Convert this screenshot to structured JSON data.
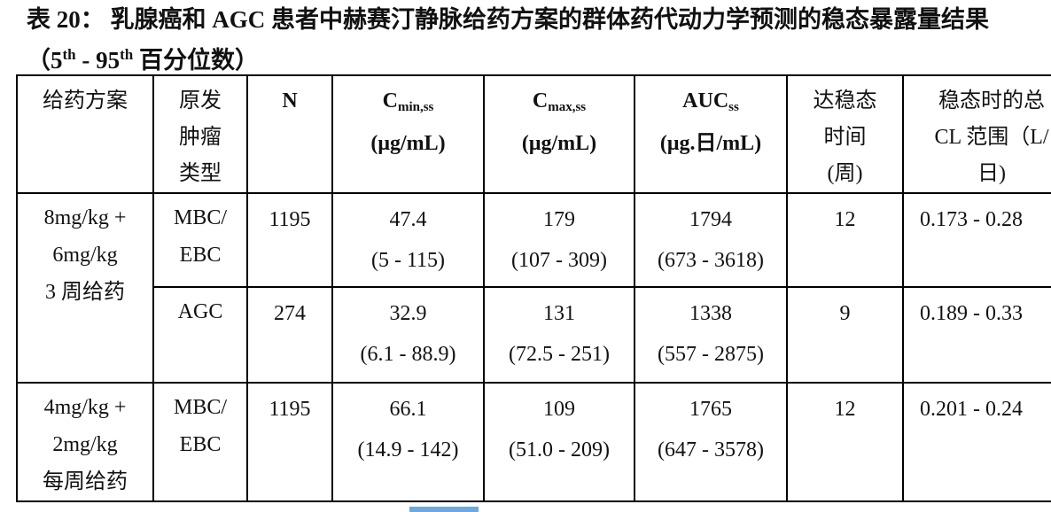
{
  "title": {
    "text": "表 20：  乳腺癌和 AGC 患者中赫赛汀静脉给药方案的群体药代动力学预测的稳态暴露量结果（5",
    "sup1": "th",
    "mid": " - 95",
    "sup2": "th",
    "suffix": " 百分位数）"
  },
  "table": {
    "headers": [
      {
        "lines": [
          "给药方案"
        ]
      },
      {
        "lines": [
          "原发",
          "肿瘤",
          "类型"
        ]
      },
      {
        "lines": [
          "N"
        ]
      },
      {
        "main": "C",
        "sub": "min,ss",
        "unit": "(μg/mL)"
      },
      {
        "main": "C",
        "sub": "max,ss",
        "unit": "(μg/mL)"
      },
      {
        "main": "AUC",
        "sub": "ss",
        "unit": "(μg.日/mL)"
      },
      {
        "lines": [
          "达稳态",
          "时间",
          "(周)"
        ]
      },
      {
        "lines": [
          "稳态时的总",
          "CL 范围（L/",
          "日)"
        ]
      }
    ],
    "groups": [
      {
        "regimen": [
          "8mg/kg +",
          "6mg/kg",
          "3 周给药"
        ],
        "rows": [
          {
            "tumor": [
              "MBC/",
              "EBC"
            ],
            "n": "1195",
            "cmin": [
              "47.4",
              "(5 - 115)"
            ],
            "cmax": [
              "179",
              "(107 - 309)"
            ],
            "auc": [
              "1794",
              "(673 - 3618)"
            ],
            "weeks": "12",
            "cl": "0.173 - 0.28"
          },
          {
            "tumor": [
              "AGC"
            ],
            "n": "274",
            "cmin": [
              "32.9",
              "(6.1 - 88.9)"
            ],
            "cmax": [
              "131",
              "(72.5 - 251)"
            ],
            "auc": [
              "1338",
              "(557 - 2875)"
            ],
            "weeks": "9",
            "cl": "0.189 - 0.33"
          }
        ]
      },
      {
        "regimen": [
          "4mg/kg +",
          "2mg/kg",
          "每周给药"
        ],
        "rows": [
          {
            "tumor": [
              "MBC/",
              "EBC"
            ],
            "n": "1195",
            "cmin": [
              "66.1",
              "(14.9 - 142)"
            ],
            "cmax": [
              "109",
              "(51.0 - 209)"
            ],
            "auc": [
              "1765",
              "(647 - 3578)"
            ],
            "weeks": "12",
            "cl": "0.201 - 0.24"
          }
        ]
      }
    ]
  }
}
